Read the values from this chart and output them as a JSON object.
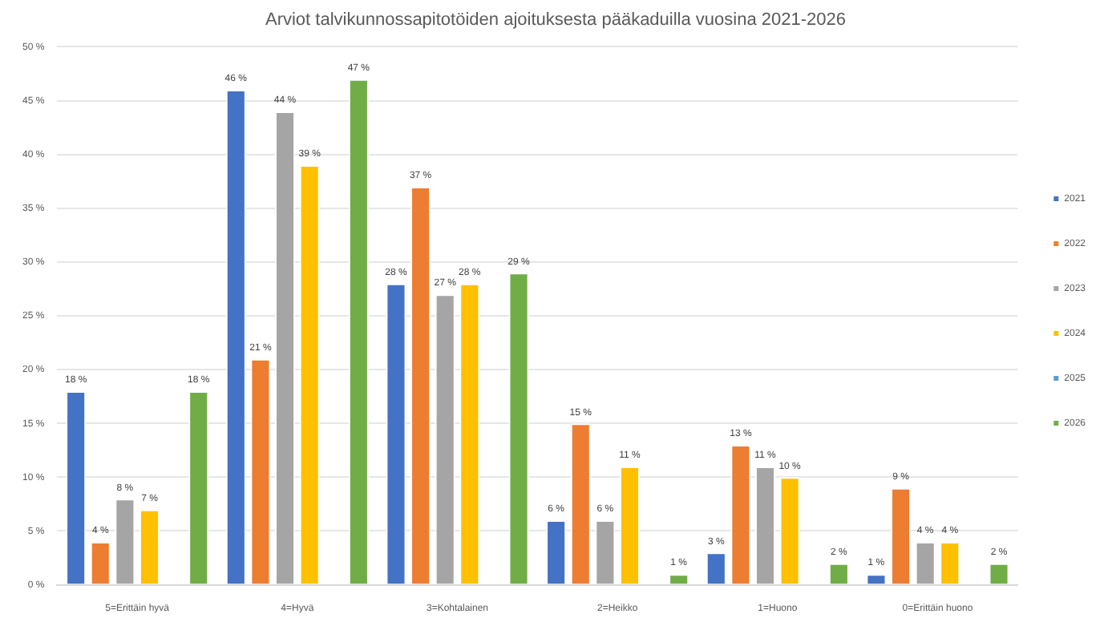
{
  "chart_data": {
    "type": "bar",
    "title": "Arviot talvikunnossapitotöiden ajoituksesta pääkaduilla vuosina 2021-2026",
    "categories": [
      "5=Erittäin hyvä",
      "4=Hyvä",
      "3=Kohtalainen",
      "2=Heikko",
      "1=Huono",
      "0=Erittäin huono"
    ],
    "series": [
      {
        "name": "2021",
        "color": "#4472c4",
        "values": [
          18,
          46,
          28,
          6,
          3,
          1
        ],
        "value_labels": [
          "18 %",
          "46 %",
          "28 %",
          "6 %",
          "3 %",
          "1 %"
        ]
      },
      {
        "name": "2022",
        "color": "#ed7d31",
        "values": [
          4,
          21,
          37,
          15,
          13,
          9
        ],
        "value_labels": [
          "4 %",
          "21 %",
          "37 %",
          "15 %",
          "13 %",
          "9 %"
        ]
      },
      {
        "name": "2023",
        "color": "#a5a5a5",
        "values": [
          8,
          44,
          27,
          6,
          11,
          4
        ],
        "value_labels": [
          "8 %",
          "44 %",
          "27 %",
          "6 %",
          "11 %",
          "4 %"
        ]
      },
      {
        "name": "2024",
        "color": "#ffc000",
        "values": [
          7,
          39,
          28,
          11,
          10,
          4
        ],
        "value_labels": [
          "7 %",
          "39 %",
          "28 %",
          "11 %",
          "10 %",
          "4 %"
        ]
      },
      {
        "name": "2025",
        "color": "#5b9bd5",
        "values": [
          null,
          null,
          null,
          null,
          null,
          null
        ]
      },
      {
        "name": "2026",
        "color": "#70ad47",
        "values": [
          18,
          47,
          29,
          1,
          2,
          2
        ],
        "value_labels": [
          "18 %",
          "47 %",
          "29 %",
          "1 %",
          "2 %",
          "2 %"
        ]
      }
    ],
    "ylim": [
      0,
      50
    ],
    "yticks": [
      {
        "value": 0,
        "label": "0 %"
      },
      {
        "value": 5,
        "label": "5 %"
      },
      {
        "value": 10,
        "label": "10 %"
      },
      {
        "value": 15,
        "label": "15 %"
      },
      {
        "value": 20,
        "label": "20 %"
      },
      {
        "value": 25,
        "label": "25 %"
      },
      {
        "value": 30,
        "label": "30 %"
      },
      {
        "value": 35,
        "label": "35 %"
      },
      {
        "value": 40,
        "label": "40 %"
      },
      {
        "value": 45,
        "label": "45 %"
      },
      {
        "value": 50,
        "label": "50 %"
      }
    ],
    "grid": "y",
    "legend": "right"
  }
}
